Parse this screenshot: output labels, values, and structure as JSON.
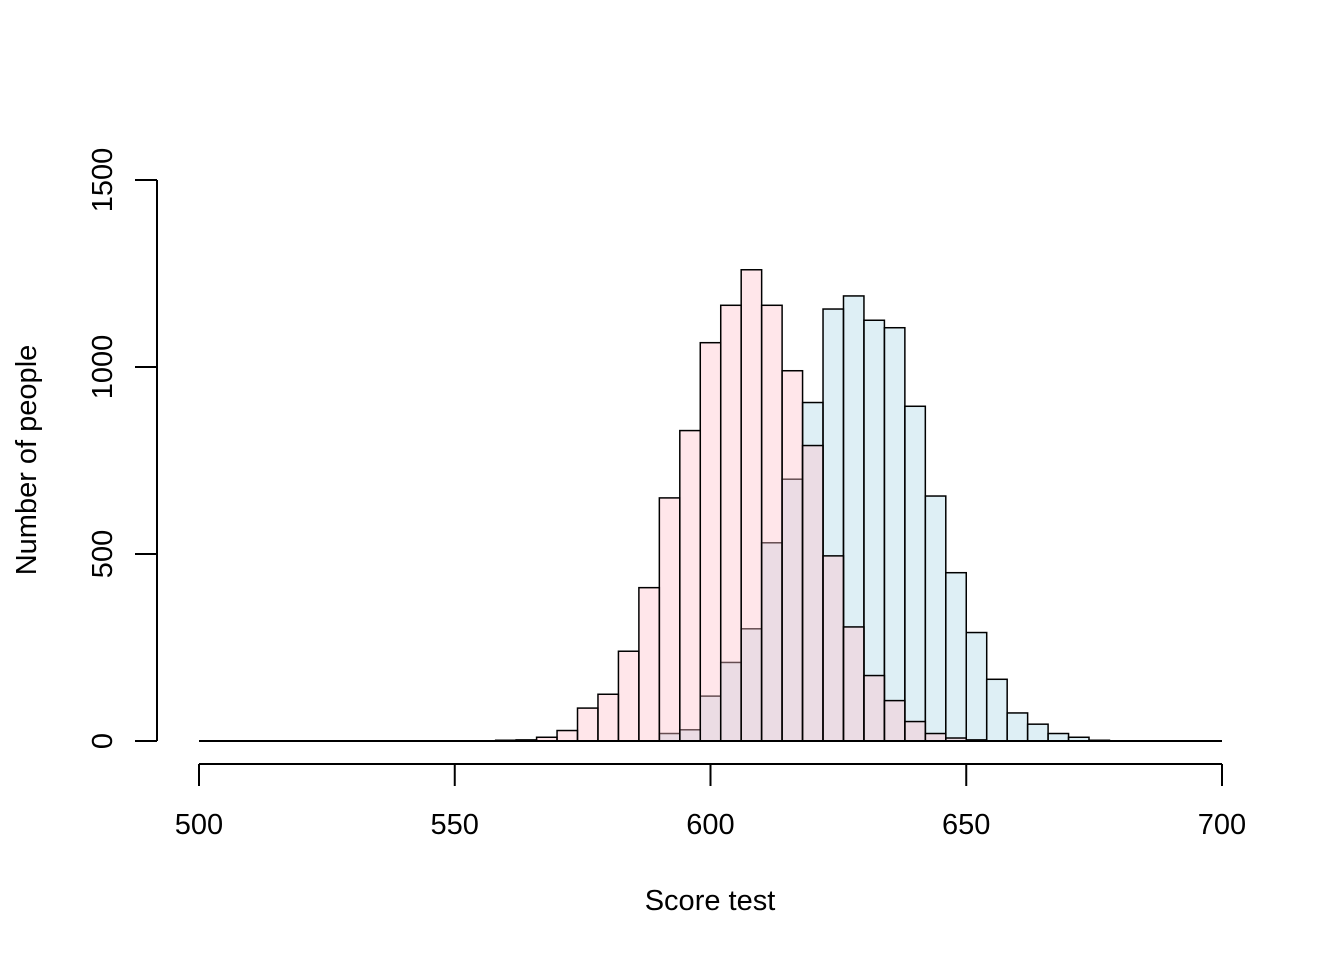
{
  "chart_data": {
    "type": "bar",
    "subtype": "overlaid-histogram",
    "title": "",
    "xlabel": "Score test",
    "ylabel": "Number of people",
    "xlim": [
      500,
      700
    ],
    "ylim": [
      0,
      1500
    ],
    "x_ticks": [
      500,
      550,
      600,
      650,
      700
    ],
    "y_ticks": [
      0,
      500,
      1000,
      1500
    ],
    "bin_width": 4,
    "grid": false,
    "legend": "none",
    "series": [
      {
        "color": "#ADD8E6",
        "bins": [
          [
            590,
            594,
            20
          ],
          [
            594,
            598,
            30
          ],
          [
            598,
            602,
            120
          ],
          [
            602,
            606,
            210
          ],
          [
            606,
            610,
            300
          ],
          [
            610,
            614,
            530
          ],
          [
            614,
            618,
            700
          ],
          [
            618,
            622,
            905
          ],
          [
            622,
            626,
            1155
          ],
          [
            626,
            630,
            1190
          ],
          [
            630,
            634,
            1125
          ],
          [
            634,
            638,
            1105
          ],
          [
            638,
            642,
            895
          ],
          [
            642,
            646,
            655
          ],
          [
            646,
            650,
            450
          ],
          [
            650,
            654,
            290
          ],
          [
            654,
            658,
            165
          ],
          [
            658,
            662,
            75
          ],
          [
            662,
            666,
            45
          ],
          [
            666,
            670,
            20
          ],
          [
            670,
            674,
            10
          ],
          [
            674,
            678,
            2
          ]
        ]
      },
      {
        "color": "#FFC0CB",
        "bins": [
          [
            558,
            562,
            2
          ],
          [
            562,
            566,
            3
          ],
          [
            566,
            570,
            10
          ],
          [
            570,
            574,
            28
          ],
          [
            574,
            578,
            88
          ],
          [
            578,
            582,
            125
          ],
          [
            582,
            586,
            240
          ],
          [
            586,
            590,
            410
          ],
          [
            590,
            594,
            650
          ],
          [
            594,
            598,
            830
          ],
          [
            598,
            602,
            1065
          ],
          [
            602,
            606,
            1165
          ],
          [
            606,
            610,
            1260
          ],
          [
            610,
            614,
            1165
          ],
          [
            614,
            618,
            990
          ],
          [
            618,
            622,
            790
          ],
          [
            622,
            626,
            495
          ],
          [
            626,
            630,
            305
          ],
          [
            630,
            634,
            175
          ],
          [
            634,
            638,
            108
          ],
          [
            638,
            642,
            52
          ],
          [
            642,
            646,
            20
          ],
          [
            646,
            650,
            8
          ],
          [
            650,
            654,
            3
          ]
        ]
      }
    ]
  }
}
